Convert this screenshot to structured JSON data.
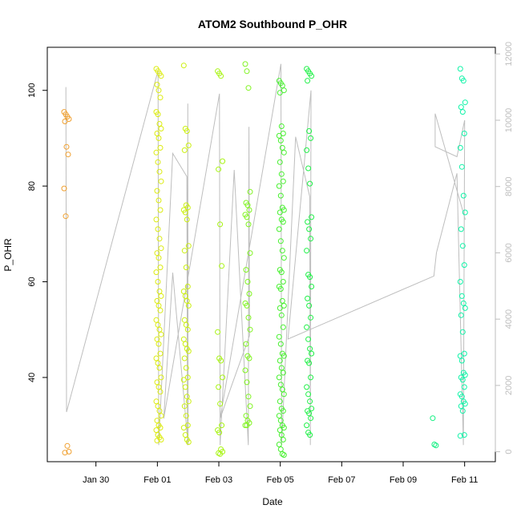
{
  "chart_data": {
    "type": "scatter",
    "title": "ATOM2 Southbound P_OHR",
    "xlabel": "Date",
    "ylabel": "P_OHR",
    "xlim": [
      "2017-01-28T10:00",
      "2017-02-12T00:00"
    ],
    "ylim": [
      22.4,
      109
    ],
    "y2lim": [
      -300,
      12200
    ],
    "x_ticks": [
      {
        "date": "2017-01-30",
        "label": "Jan 30"
      },
      {
        "date": "2017-02-01",
        "label": "Feb 01"
      },
      {
        "date": "2017-02-03",
        "label": "Feb 03"
      },
      {
        "date": "2017-02-05",
        "label": "Feb 05"
      },
      {
        "date": "2017-02-07",
        "label": "Feb 07"
      },
      {
        "date": "2017-02-09",
        "label": "Feb 09"
      },
      {
        "date": "2017-02-11",
        "label": "Feb 11"
      }
    ],
    "y_ticks": [
      40,
      60,
      80,
      100
    ],
    "y2_ticks": [
      0,
      2000,
      4000,
      6000,
      8000,
      10000,
      12000
    ],
    "grid": false,
    "legend": "none",
    "point_color_scale": "orange to spring-green by time",
    "bursts": [
      {
        "date": "2017-01-29T01:00",
        "color": "#f0a030",
        "y": [
          95.5,
          95,
          94.5,
          94,
          93.5,
          88.2,
          86.6,
          79.5,
          73.7,
          25.7,
          24.5,
          24.3
        ]
      },
      {
        "date": "2017-02-01T01:00",
        "color": "#dcec10",
        "y": [
          104.5,
          104,
          103.5,
          103,
          101.2,
          100,
          98.5,
          95.5,
          95,
          93,
          92,
          91,
          90,
          88,
          87,
          85,
          83,
          81,
          79,
          77,
          75,
          73,
          71,
          69,
          67,
          66,
          65,
          63,
          62,
          60,
          58,
          57,
          56,
          55,
          54,
          52,
          51,
          50,
          49,
          48,
          47,
          45,
          44,
          43,
          42,
          40,
          39,
          38,
          37,
          35,
          34,
          33,
          32,
          31,
          30,
          29.5,
          29,
          28,
          27.5,
          27,
          26.8
        ]
      },
      {
        "date": "2017-02-01T22:30",
        "color": "#ccf010",
        "y": [
          105.2,
          92,
          91.5,
          88.5,
          87.5,
          76,
          75.5,
          75,
          74.5,
          73,
          67.5,
          66.5,
          63,
          59,
          58,
          57,
          56,
          55,
          52,
          51,
          50,
          48,
          47,
          46,
          45.5,
          44,
          42,
          40,
          39.5,
          38,
          36,
          35,
          34,
          32,
          30,
          29.5,
          28,
          27,
          26.5
        ]
      },
      {
        "date": "2017-02-03T01:00",
        "color": "#a8f414",
        "y": [
          104,
          103.5,
          103,
          85.2,
          83.5,
          72,
          63.3,
          49.5,
          44,
          43.5,
          40,
          38,
          34.5,
          30,
          29,
          28.5,
          25,
          24.5,
          24.2,
          24
        ]
      },
      {
        "date": "2017-02-03T22:30",
        "color": "#80f420",
        "y": [
          105.5,
          104,
          100.5,
          78.8,
          76.5,
          76,
          75,
          74,
          73.5,
          72,
          66,
          62.5,
          60,
          57.5,
          55.5,
          55,
          52.5,
          50,
          47,
          44.5,
          44,
          41.5,
          39,
          36,
          34,
          32,
          31,
          30.5,
          30,
          30
        ]
      },
      {
        "date": "2017-02-05T01:00",
        "color": "#48f030",
        "y": [
          102,
          101.5,
          101,
          100,
          99.5,
          92.5,
          91,
          90.5,
          89.5,
          88,
          87,
          85,
          82.5,
          81,
          80,
          78,
          75.5,
          75,
          74.5,
          73,
          72.5,
          71,
          68.5,
          66.5,
          65,
          62.5,
          62,
          60,
          59,
          58.5,
          56,
          55,
          54.5,
          53,
          50.5,
          48.5,
          47,
          45,
          44.5,
          43.5,
          42,
          41,
          40,
          38.5,
          37.5,
          36.5,
          35,
          33.5,
          33,
          32,
          31,
          30,
          29.5,
          29,
          28,
          27,
          26,
          25,
          24,
          23.8
        ]
      },
      {
        "date": "2017-02-05T22:30",
        "color": "#20f048",
        "y": [
          104.5,
          104,
          103.5,
          103,
          102,
          91.5,
          90,
          87.5,
          83.7,
          80.5,
          73.5,
          72.5,
          71,
          69,
          66.5,
          61.5,
          61,
          59,
          56.5,
          55,
          52.5,
          50.5,
          48,
          46,
          45,
          43.5,
          43,
          40,
          38,
          36.5,
          35,
          33.5,
          33,
          32.5,
          31.5,
          30,
          28.5,
          28
        ]
      },
      {
        "date": "2017-02-10T01:00",
        "color": "#10f080",
        "y": [
          31.5,
          26,
          25.8
        ]
      },
      {
        "date": "2017-02-10T22:30",
        "color": "#10f4a8",
        "y": [
          104.5,
          102.5,
          102,
          97.5,
          96.5,
          95.5,
          91,
          88,
          84,
          78,
          74.5,
          71,
          67.5,
          63.5,
          60,
          57,
          55.5,
          54.5,
          53,
          49.5,
          45,
          44.5,
          43.5,
          41,
          40.5,
          40,
          39.5,
          38,
          36.5,
          36,
          35,
          34.5,
          34,
          33,
          28,
          27.8
        ]
      }
    ],
    "secondary_series": {
      "name": "",
      "axis": "right",
      "color": "#bebebe",
      "points": [
        {
          "date": "2017-01-29T00:30",
          "v": 11000
        },
        {
          "date": "2017-01-29T01:00",
          "v": 1200
        },
        {
          "date": "2017-02-01T00:30",
          "v": 11500
        },
        {
          "date": "2017-02-01T01:00",
          "v": 200
        },
        {
          "date": "2017-02-01T12:00",
          "v": 9000
        },
        {
          "date": "2017-02-01T23:00",
          "v": 8300
        },
        {
          "date": "2017-02-01T23:30",
          "v": 200
        },
        {
          "date": "2017-02-01T23:45",
          "v": 10500
        },
        {
          "date": "2017-02-02T00:00",
          "v": 200
        },
        {
          "date": "2017-02-01T12:00",
          "v": 5400
        },
        {
          "date": "2017-02-01T05:00",
          "v": 1000
        },
        {
          "date": "2017-02-03T00:30",
          "v": 10800
        },
        {
          "date": "2017-02-03T01:00",
          "v": 200
        },
        {
          "date": "2017-02-03T12:00",
          "v": 8500
        },
        {
          "date": "2017-02-03T23:00",
          "v": 200
        },
        {
          "date": "2017-02-03T23:30",
          "v": 9800
        },
        {
          "date": "2017-02-04T00:00",
          "v": 3500
        },
        {
          "date": "2017-02-03T10:00",
          "v": 2000
        },
        {
          "date": "2017-02-03T01:00",
          "v": 1000
        },
        {
          "date": "2017-02-05T00:30",
          "v": 11700
        },
        {
          "date": "2017-02-05T01:00",
          "v": 200
        },
        {
          "date": "2017-02-05T12:00",
          "v": 9500
        },
        {
          "date": "2017-02-05T23:00",
          "v": 7700
        },
        {
          "date": "2017-02-05T23:30",
          "v": 200
        },
        {
          "date": "2017-02-06T00:00",
          "v": 10900
        },
        {
          "date": "2017-02-05T06:00",
          "v": 3400
        },
        {
          "date": "2017-02-10T00:00",
          "v": 5300
        },
        {
          "date": "2017-02-10T02:00",
          "v": 6000
        },
        {
          "date": "2017-02-10T18:00",
          "v": 8400
        },
        {
          "date": "2017-02-10T23:00",
          "v": 200
        },
        {
          "date": "2017-02-11T00:00",
          "v": 10000
        },
        {
          "date": "2017-02-10T18:00",
          "v": 8900
        },
        {
          "date": "2017-02-10T01:00",
          "v": 9200
        },
        {
          "date": "2017-02-10T01:00",
          "v": 10200
        },
        {
          "date": "2017-02-11T00:30",
          "v": 7000
        }
      ]
    }
  }
}
